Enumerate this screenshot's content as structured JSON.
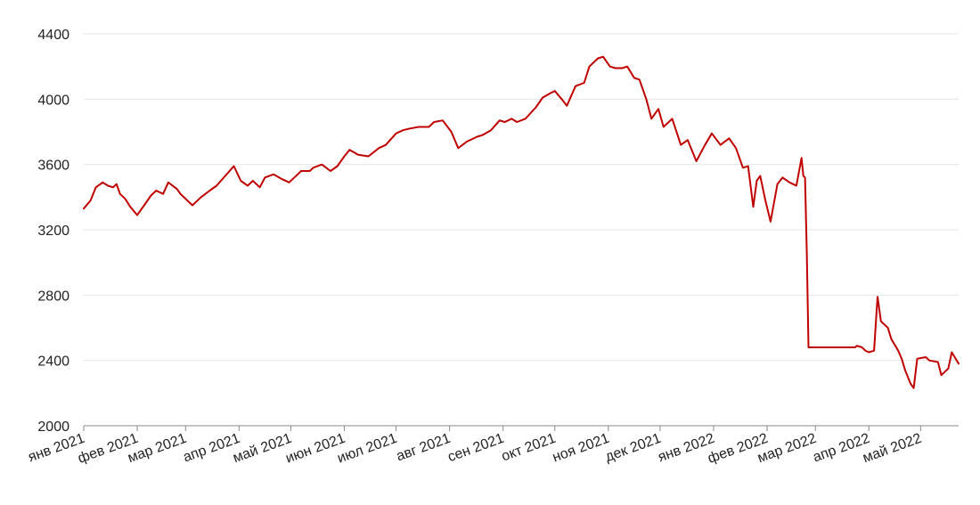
{
  "chart_data": {
    "type": "line",
    "title": "",
    "xlabel": "",
    "ylabel": "",
    "grid": true,
    "legend": "none",
    "color": "#c00000",
    "ylim": [
      2000,
      4400
    ],
    "xlim": [
      "2021-01-01",
      "2022-05-23"
    ],
    "y_ticks": [
      {
        "value": 2000,
        "label": "2000"
      },
      {
        "value": 2400,
        "label": "2400"
      },
      {
        "value": 2800,
        "label": "2800"
      },
      {
        "value": 3200,
        "label": "3200"
      },
      {
        "value": 3600,
        "label": "3600"
      },
      {
        "value": 4000,
        "label": "4000"
      },
      {
        "value": 4400,
        "label": "4400"
      }
    ],
    "x_ticks": [
      {
        "value": "2021-01-01",
        "label": "янв 2021"
      },
      {
        "value": "2021-02-01",
        "label": "фев 2021"
      },
      {
        "value": "2021-03-01",
        "label": "мар 2021"
      },
      {
        "value": "2021-04-01",
        "label": "апр 2021"
      },
      {
        "value": "2021-05-01",
        "label": "май 2021"
      },
      {
        "value": "2021-06-01",
        "label": "июн 2021"
      },
      {
        "value": "2021-07-01",
        "label": "июл 2021"
      },
      {
        "value": "2021-08-01",
        "label": "авг 2021"
      },
      {
        "value": "2021-09-01",
        "label": "сен 2021"
      },
      {
        "value": "2021-10-01",
        "label": "окт 2021"
      },
      {
        "value": "2021-11-01",
        "label": "ноя 2021"
      },
      {
        "value": "2021-12-01",
        "label": "дек 2021"
      },
      {
        "value": "2022-01-01",
        "label": "янв 2022"
      },
      {
        "value": "2022-02-01",
        "label": "фев 2022"
      },
      {
        "value": "2022-03-01",
        "label": "мар 2022"
      },
      {
        "value": "2022-04-01",
        "label": "апр 2022"
      },
      {
        "value": "2022-05-01",
        "label": "май 2022"
      }
    ],
    "series": [
      {
        "x": [
          "2021-01-01",
          "2021-01-05",
          "2021-01-08",
          "2021-01-12",
          "2021-01-15",
          "2021-01-18",
          "2021-01-20",
          "2021-01-22",
          "2021-01-25",
          "2021-01-28",
          "2021-02-01",
          "2021-02-05",
          "2021-02-09",
          "2021-02-12",
          "2021-02-16",
          "2021-02-19",
          "2021-02-24",
          "2021-02-26",
          "2021-03-02",
          "2021-03-05",
          "2021-03-10",
          "2021-03-15",
          "2021-03-19",
          "2021-03-24",
          "2021-03-29",
          "2021-04-02",
          "2021-04-06",
          "2021-04-09",
          "2021-04-13",
          "2021-04-16",
          "2021-04-21",
          "2021-04-26",
          "2021-04-30",
          "2021-05-05",
          "2021-05-07",
          "2021-05-12",
          "2021-05-14",
          "2021-05-19",
          "2021-05-24",
          "2021-05-28",
          "2021-06-01",
          "2021-06-04",
          "2021-06-09",
          "2021-06-15",
          "2021-06-21",
          "2021-06-25",
          "2021-07-01",
          "2021-07-05",
          "2021-07-09",
          "2021-07-14",
          "2021-07-20",
          "2021-07-23",
          "2021-07-28",
          "2021-08-02",
          "2021-08-06",
          "2021-08-11",
          "2021-08-17",
          "2021-08-20",
          "2021-08-25",
          "2021-08-30",
          "2021-09-02",
          "2021-09-06",
          "2021-09-09",
          "2021-09-14",
          "2021-09-20",
          "2021-09-24",
          "2021-09-29",
          "2021-10-01",
          "2021-10-05",
          "2021-10-08",
          "2021-10-13",
          "2021-10-18",
          "2021-10-21",
          "2021-10-26",
          "2021-10-29",
          "2021-11-02",
          "2021-11-05",
          "2021-11-09",
          "2021-11-12",
          "2021-11-16",
          "2021-11-19",
          "2021-11-23",
          "2021-11-26",
          "2021-11-30",
          "2021-12-03",
          "2021-12-08",
          "2021-12-13",
          "2021-12-17",
          "2021-12-22",
          "2021-12-27",
          "2021-12-31",
          "2022-01-05",
          "2022-01-10",
          "2022-01-14",
          "2022-01-18",
          "2022-01-21",
          "2022-01-24",
          "2022-01-26",
          "2022-01-28",
          "2022-01-31",
          "2022-02-03",
          "2022-02-07",
          "2022-02-10",
          "2022-02-14",
          "2022-02-16",
          "2022-02-18",
          "2022-02-21",
          "2022-02-22",
          "2022-02-23",
          "2022-02-24",
          "2022-02-25",
          "2022-03-24",
          "2022-03-25",
          "2022-03-28",
          "2022-03-30",
          "2022-04-01",
          "2022-04-04",
          "2022-04-06",
          "2022-04-08",
          "2022-04-12",
          "2022-04-14",
          "2022-04-18",
          "2022-04-20",
          "2022-04-22",
          "2022-04-25",
          "2022-04-27",
          "2022-04-29",
          "2022-05-04",
          "2022-05-06",
          "2022-05-11",
          "2022-05-13",
          "2022-05-17",
          "2022-05-19",
          "2022-05-23"
        ],
        "values": [
          3330,
          3380,
          3460,
          3490,
          3470,
          3460,
          3480,
          3420,
          3390,
          3340,
          3290,
          3350,
          3410,
          3440,
          3420,
          3490,
          3450,
          3420,
          3380,
          3350,
          3400,
          3440,
          3470,
          3530,
          3590,
          3500,
          3470,
          3500,
          3460,
          3520,
          3540,
          3510,
          3490,
          3540,
          3560,
          3560,
          3580,
          3600,
          3560,
          3590,
          3650,
          3690,
          3660,
          3650,
          3700,
          3720,
          3790,
          3810,
          3820,
          3830,
          3830,
          3860,
          3870,
          3800,
          3700,
          3740,
          3770,
          3780,
          3810,
          3870,
          3860,
          3880,
          3860,
          3880,
          3950,
          4010,
          4040,
          4050,
          4000,
          3960,
          4080,
          4100,
          4200,
          4250,
          4260,
          4200,
          4190,
          4190,
          4200,
          4130,
          4120,
          4000,
          3880,
          3940,
          3830,
          3880,
          3720,
          3750,
          3620,
          3720,
          3790,
          3720,
          3760,
          3700,
          3580,
          3590,
          3340,
          3500,
          3530,
          3380,
          3250,
          3480,
          3520,
          3490,
          3480,
          3470,
          3640,
          3530,
          3520,
          3060,
          2480,
          2480,
          2490,
          2480,
          2460,
          2450,
          2460,
          2790,
          2640,
          2600,
          2530,
          2460,
          2410,
          2340,
          2260,
          2230,
          2410,
          2420,
          2400,
          2390,
          2310,
          2350,
          2450,
          2380
        ]
      }
    ]
  }
}
